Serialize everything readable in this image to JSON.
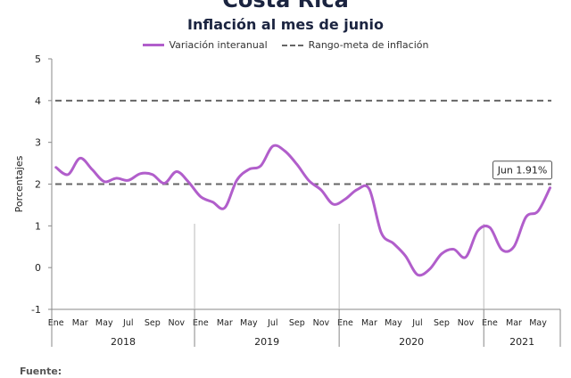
{
  "title": "Costa Rica",
  "subtitle": "Inflación al mes de junio",
  "footer": "Fuente:",
  "colors": {
    "series": "#b15ecb",
    "target": "#666666",
    "axis": "#888888",
    "title": "#1b2440"
  },
  "chart_data": {
    "type": "line",
    "title": "Inflación al mes de junio",
    "ylabel": "Porcentajes",
    "ylim": [
      -1,
      5
    ],
    "yticks": [
      -1,
      0,
      1,
      2,
      3,
      4,
      5
    ],
    "grid": false,
    "legend_position": "top",
    "x_month_labels": [
      "Ene",
      "Mar",
      "May",
      "Jul",
      "Sep",
      "Nov",
      "Ene",
      "Mar",
      "May",
      "Jul",
      "Sep",
      "Nov",
      "Ene",
      "Mar",
      "May",
      "Jul",
      "Sep",
      "Nov",
      "Ene",
      "Mar",
      "May"
    ],
    "years": [
      "2018",
      "2019",
      "2020",
      "2021"
    ],
    "series": [
      {
        "name": "Variación interanual",
        "style": "solid",
        "x": [
          "2018-01",
          "2018-02",
          "2018-03",
          "2018-04",
          "2018-05",
          "2018-06",
          "2018-07",
          "2018-08",
          "2018-09",
          "2018-10",
          "2018-11",
          "2018-12",
          "2019-01",
          "2019-02",
          "2019-03",
          "2019-04",
          "2019-05",
          "2019-06",
          "2019-07",
          "2019-08",
          "2019-09",
          "2019-10",
          "2019-11",
          "2019-12",
          "2020-01",
          "2020-02",
          "2020-03",
          "2020-04",
          "2020-05",
          "2020-06",
          "2020-07",
          "2020-08",
          "2020-09",
          "2020-10",
          "2020-11",
          "2020-12",
          "2021-01",
          "2021-02",
          "2021-03",
          "2021-04",
          "2021-05",
          "2021-06"
        ],
        "values": [
          2.4,
          2.23,
          2.62,
          2.35,
          2.06,
          2.14,
          2.09,
          2.25,
          2.23,
          2.02,
          2.3,
          2.05,
          1.7,
          1.57,
          1.43,
          2.09,
          2.35,
          2.44,
          2.91,
          2.79,
          2.47,
          2.08,
          1.86,
          1.52,
          1.64,
          1.87,
          1.88,
          0.83,
          0.58,
          0.28,
          -0.17,
          -0.04,
          0.33,
          0.44,
          0.25,
          0.88,
          0.96,
          0.43,
          0.5,
          1.21,
          1.35,
          1.91
        ]
      },
      {
        "name": "Rango-meta de inflación",
        "style": "dashed",
        "lines": [
          2,
          4
        ]
      }
    ],
    "annotations": [
      {
        "text": "Jun 1.91%",
        "x": "2021-06",
        "y": 1.91
      }
    ]
  }
}
